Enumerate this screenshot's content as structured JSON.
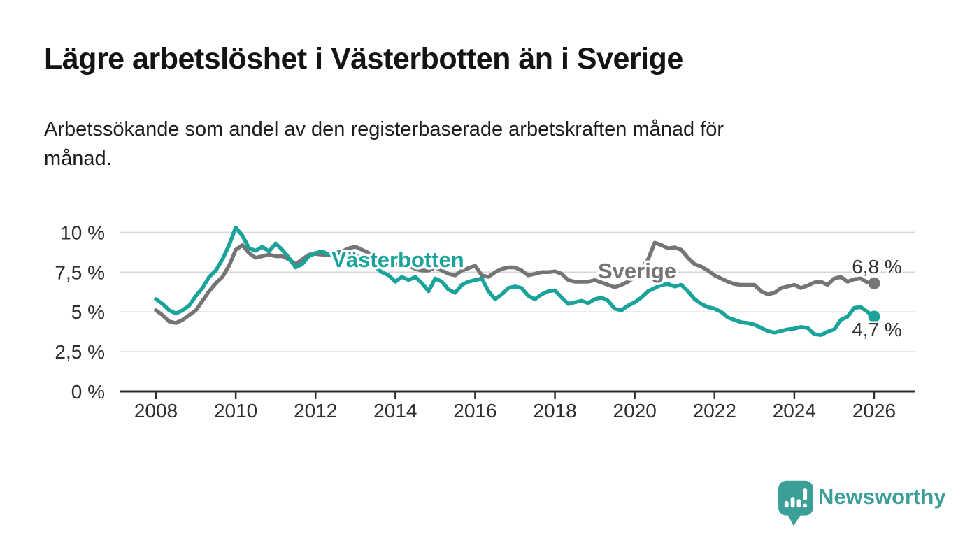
{
  "header": {
    "title": "Lägre arbetslöshet i Västerbotten än i Sverige",
    "subtitle_line1": "Arbetssökande som andel av den registerbaserade arbetskraften månad för",
    "subtitle_line2": "månad."
  },
  "branding": {
    "logo_text": "Newsworthy",
    "logo_color": "#3b9f98",
    "logo_icon": "bar-chart-speech-bubble-icon"
  },
  "chart_data": {
    "type": "line",
    "title": "Lägre arbetslöshet i Västerbotten än i Sverige",
    "subtitle": "Arbetssökande som andel av den registerbaserade arbetskraften månad för månad.",
    "grid": "horizontal",
    "legend_position": "inline-labels",
    "colors": {
      "grid": "#d6d6d6",
      "axis": "#2d2d2d",
      "tick_text": "#2e2e2e",
      "end_label_text": "#333333"
    },
    "ylim": [
      0,
      10.6
    ],
    "xlim": [
      2007.1,
      2027.0
    ],
    "yticks": [
      {
        "value": 0,
        "label": "0 %"
      },
      {
        "value": 2.5,
        "label": "2,5 %"
      },
      {
        "value": 5,
        "label": "5 %"
      },
      {
        "value": 7.5,
        "label": "7,5 %"
      },
      {
        "value": 10,
        "label": "10 %"
      }
    ],
    "xticks": [
      {
        "value": 2008,
        "label": "2008"
      },
      {
        "value": 2010,
        "label": "2010"
      },
      {
        "value": 2012,
        "label": "2012"
      },
      {
        "value": 2014,
        "label": "2014"
      },
      {
        "value": 2016,
        "label": "2016"
      },
      {
        "value": 2018,
        "label": "2018"
      },
      {
        "value": 2020,
        "label": "2020"
      },
      {
        "value": 2022,
        "label": "2022"
      },
      {
        "value": 2024,
        "label": "2024"
      },
      {
        "value": 2026,
        "label": "2026"
      }
    ],
    "x_start": 2008,
    "x_step_years": 0.16667,
    "points": 109,
    "series": [
      {
        "name": "Västerbotten",
        "color": "#1aa39a",
        "end_label": "4,7 %",
        "end_value": 4.7,
        "values": [
          5.8,
          5.5,
          5.1,
          4.9,
          5.1,
          5.4,
          6.0,
          6.5,
          7.2,
          7.6,
          8.3,
          9.2,
          10.3,
          9.8,
          9.0,
          8.85,
          9.1,
          8.8,
          9.3,
          8.9,
          8.4,
          7.8,
          8.0,
          8.5,
          8.7,
          8.8,
          8.6,
          8.8,
          8.6,
          8.4,
          8.6,
          8.4,
          8.1,
          7.8,
          7.5,
          7.3,
          6.9,
          7.2,
          7.0,
          7.2,
          6.8,
          6.3,
          7.1,
          6.9,
          6.4,
          6.2,
          6.7,
          6.9,
          7.0,
          7.1,
          6.3,
          5.8,
          6.1,
          6.5,
          6.6,
          6.5,
          6.0,
          5.8,
          6.1,
          6.3,
          6.35,
          5.9,
          5.5,
          5.6,
          5.7,
          5.55,
          5.8,
          5.9,
          5.7,
          5.2,
          5.1,
          5.4,
          5.6,
          5.9,
          6.3,
          6.5,
          6.7,
          6.75,
          6.6,
          6.7,
          6.3,
          5.8,
          5.5,
          5.3,
          5.2,
          5.0,
          4.65,
          4.5,
          4.35,
          4.3,
          4.2,
          4.0,
          3.8,
          3.7,
          3.8,
          3.9,
          3.95,
          4.05,
          4.0,
          3.6,
          3.55,
          3.75,
          3.9,
          4.5,
          4.7,
          5.25,
          5.3,
          5.0,
          4.7
        ]
      },
      {
        "name": "Sverige",
        "color": "#757575",
        "end_label": "6,8 %",
        "end_value": 6.8,
        "values": [
          5.1,
          4.8,
          4.4,
          4.3,
          4.5,
          4.8,
          5.1,
          5.7,
          6.3,
          6.8,
          7.2,
          7.9,
          8.9,
          9.2,
          8.7,
          8.4,
          8.5,
          8.6,
          8.5,
          8.5,
          8.3,
          8.0,
          8.3,
          8.6,
          8.65,
          8.6,
          8.55,
          8.7,
          8.8,
          9.0,
          9.1,
          8.9,
          8.7,
          8.5,
          8.3,
          8.1,
          8.0,
          8.0,
          7.9,
          7.7,
          7.6,
          7.6,
          7.8,
          7.6,
          7.4,
          7.3,
          7.6,
          7.75,
          7.9,
          7.3,
          7.2,
          7.5,
          7.7,
          7.8,
          7.8,
          7.6,
          7.3,
          7.4,
          7.5,
          7.5,
          7.55,
          7.4,
          7.0,
          6.9,
          6.9,
          6.9,
          7.0,
          6.85,
          6.7,
          6.55,
          6.7,
          6.9,
          7.2,
          7.7,
          8.3,
          9.35,
          9.2,
          9.0,
          9.05,
          8.9,
          8.4,
          8.0,
          7.85,
          7.6,
          7.3,
          7.1,
          6.9,
          6.75,
          6.7,
          6.7,
          6.7,
          6.3,
          6.1,
          6.2,
          6.5,
          6.6,
          6.7,
          6.5,
          6.65,
          6.85,
          6.9,
          6.7,
          7.1,
          7.2,
          6.9,
          7.05,
          7.1,
          6.85,
          6.8
        ]
      }
    ]
  }
}
